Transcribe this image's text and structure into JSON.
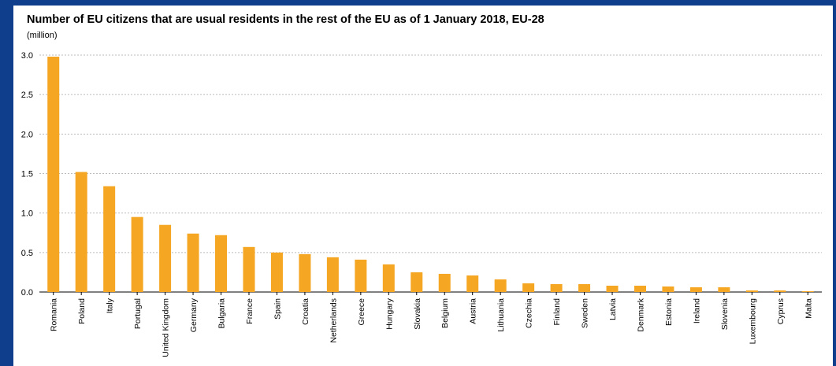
{
  "chart_data": {
    "type": "bar",
    "title": "Number of EU citizens that are usual residents in the rest of the EU as of 1 January 2018, EU-28",
    "unit": "(million)",
    "ylim": [
      0,
      3.0
    ],
    "yticks": [
      "0.0",
      "0.5",
      "1.0",
      "1.5",
      "2.0",
      "2.5",
      "3.0"
    ],
    "grid": true,
    "bar_color": "#f5a623",
    "categories": [
      "Romania",
      "Poland",
      "Italy",
      "Portugal",
      "United Kingdom",
      "Germany",
      "Bulgaria",
      "France",
      "Spain",
      "Croatia",
      "Netherlands",
      "Greece",
      "Hungary",
      "Slovakia",
      "Belgium",
      "Austria",
      "Lithuania",
      "Czechia",
      "Finland",
      "Sweden",
      "Latvia",
      "Denmark",
      "Estonia",
      "Ireland",
      "Slovenia",
      "Luxembourg",
      "Cyprus",
      "Malta"
    ],
    "values": [
      2.98,
      1.52,
      1.34,
      0.95,
      0.85,
      0.74,
      0.72,
      0.57,
      0.5,
      0.48,
      0.44,
      0.41,
      0.35,
      0.25,
      0.23,
      0.21,
      0.16,
      0.11,
      0.1,
      0.1,
      0.08,
      0.08,
      0.07,
      0.06,
      0.06,
      0.02,
      0.02,
      0.01
    ]
  },
  "colors": {
    "frame": "#0f3f8c",
    "grid": "#bbbbbb",
    "bar": "#f5a623"
  }
}
